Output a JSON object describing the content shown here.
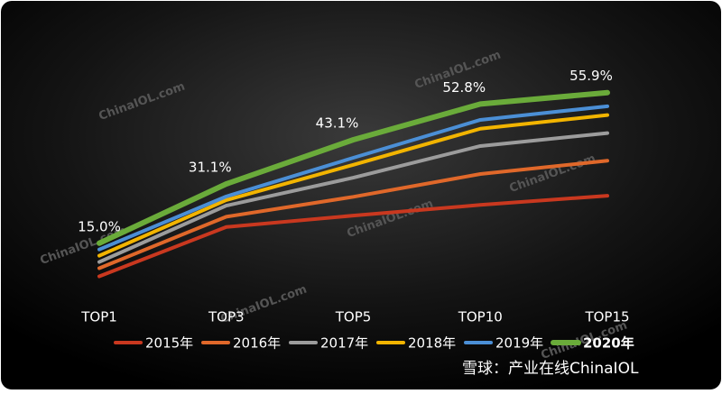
{
  "chart_data": {
    "type": "line",
    "categories": [
      "TOP1",
      "TOP3",
      "TOP5",
      "TOP10",
      "TOP15"
    ],
    "series": [
      {
        "name": "2015年",
        "color": "#c9381f",
        "values": [
          6.0,
          19.4,
          22.5,
          25.4,
          27.9
        ]
      },
      {
        "name": "2016年",
        "color": "#e0682a",
        "values": [
          8.2,
          22.2,
          27.6,
          33.8,
          37.4
        ]
      },
      {
        "name": "2017年",
        "color": "#9c9c9c",
        "values": [
          9.9,
          25.2,
          32.8,
          41.4,
          44.9
        ]
      },
      {
        "name": "2018年",
        "color": "#f2b400",
        "values": [
          11.6,
          26.7,
          36.3,
          46.1,
          49.8
        ]
      },
      {
        "name": "2019年",
        "color": "#4b8fd6",
        "values": [
          13.3,
          27.7,
          38.2,
          48.5,
          52.2
        ]
      },
      {
        "name": "2020年",
        "color": "#6aab3a",
        "values": [
          15.0,
          31.1,
          43.1,
          52.8,
          55.9
        ],
        "value_labels": [
          "15.0%",
          "31.1%",
          "43.1%",
          "52.8%",
          "55.9%"
        ]
      }
    ],
    "ylim": [
      0,
      60
    ],
    "legend": "bottom",
    "watermark": "ChinaIOL.com",
    "footer": "雪球：产业在线ChinaIOL"
  }
}
